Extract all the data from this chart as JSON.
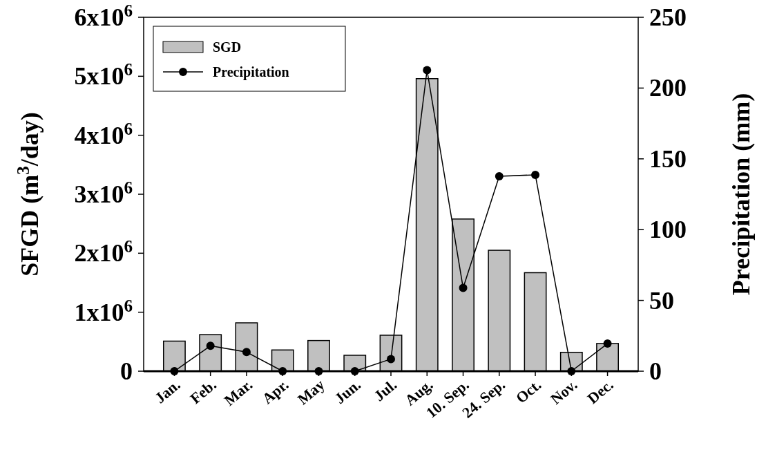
{
  "chart_data": {
    "type": "bar",
    "xlabel": null,
    "ylabel": "SFGD (m$^{3}$/day)",
    "y2label": "Precipitation (mm)",
    "categories": [
      "Jan.",
      "Feb.",
      "Mar.",
      "Apr.",
      "May",
      "Jun.",
      "Jul.",
      "Aug.",
      "10. Sep.",
      "24. Sep.",
      "Oct.",
      "Nov.",
      "Dec."
    ],
    "series": [
      {
        "name": "SGD",
        "color": "#c0c0c0",
        "values": [
          510000,
          620000,
          820000,
          360000,
          520000,
          270000,
          610000,
          4960000,
          2580000,
          2050000,
          1670000,
          320000,
          470000
        ]
      },
      {
        "name": "Precipitation",
        "type": "line",
        "axis": "y2",
        "color": "#000000",
        "values": [
          0,
          17.9,
          13.5,
          0,
          0,
          0,
          8.6,
          212.7,
          58.8,
          137.7,
          138.7,
          0,
          19.5
        ]
      }
    ],
    "ylim": [
      0,
      6000000
    ],
    "yticks": [
      0,
      {
        "value": 1000000,
        "label": "1x10$^{6}$"
      },
      {
        "value": 2000000,
        "label": "2x10$^{6}$"
      },
      {
        "value": 3000000,
        "label": "3x10$^{6}$"
      },
      {
        "value": 4000000,
        "label": "4x10$^{6}$"
      },
      {
        "value": 5000000,
        "label": "5x10$^{6}$"
      },
      {
        "value": 6000000,
        "label": "6x10$^{6}$"
      }
    ],
    "y2lim": [
      0,
      250
    ],
    "y2ticks": [
      0,
      50,
      100,
      150,
      200,
      250
    ],
    "legend": "top left",
    "marker": "circle",
    "line_style": "solid"
  }
}
